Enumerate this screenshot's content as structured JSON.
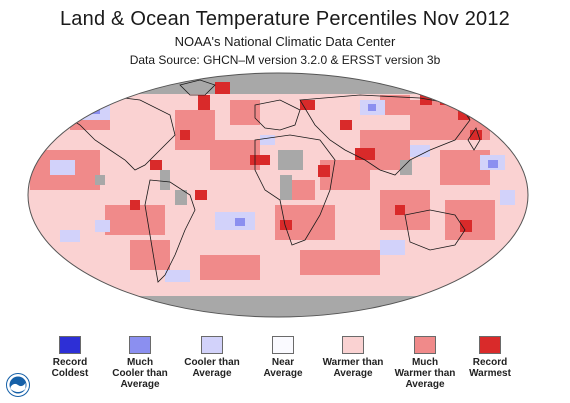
{
  "title": "Land & Ocean Temperature Percentiles Nov 2012",
  "subtitle": "NOAA's National Climatic Data Center",
  "source": "Data Source: GHCN–M version 3.2.0 & ERSST version 3b",
  "legend": [
    {
      "label": "Record\nColdest",
      "color": "#2d2fd6"
    },
    {
      "label": "Much\nCooler than\nAverage",
      "color": "#8b8ff0"
    },
    {
      "label": "Cooler than\nAverage",
      "color": "#d2d2fa"
    },
    {
      "label": "Near\nAverage",
      "color": "#fafaff"
    },
    {
      "label": "Warmer than\nAverage",
      "color": "#fad2d2"
    },
    {
      "label": "Much\nWarmer than\nAverage",
      "color": "#f08a8a"
    },
    {
      "label": "Record\nWarmest",
      "color": "#d92a2a"
    }
  ],
  "colors": {
    "no_data": "#a8a8a8",
    "coastline": "#1a1a1a",
    "logo": "#1560a8"
  },
  "logo_icon": "noaa-logo-icon"
}
